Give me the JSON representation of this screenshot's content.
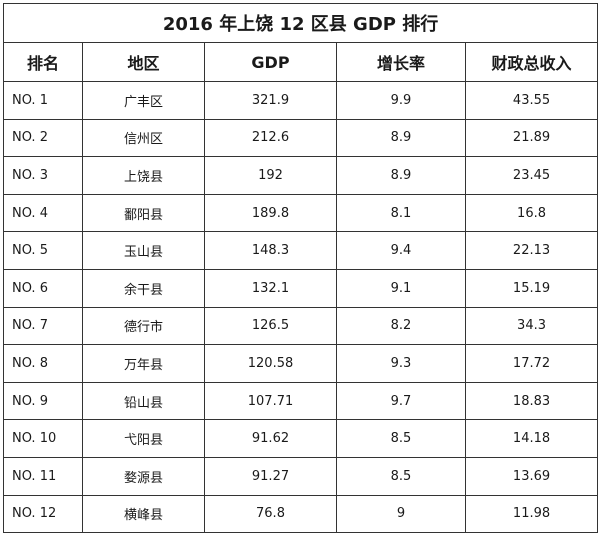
{
  "title": "2016 年上饶 12 区县 GDP 排行",
  "headers": [
    "排名",
    "地区",
    "GDP",
    "增长率",
    "财政总收入"
  ],
  "rows": [
    {
      "rank": "NO. 1",
      "region": "广丰区",
      "gdp": "321.9",
      "growth": "9.9",
      "revenue": "43.55"
    },
    {
      "rank": "NO. 2",
      "region": "信州区",
      "gdp": "212.6",
      "growth": "8.9",
      "revenue": "21.89"
    },
    {
      "rank": "NO. 3",
      "region": "上饶县",
      "gdp": "192",
      "growth": "8.9",
      "revenue": "23.45"
    },
    {
      "rank": "NO. 4",
      "region": "鄱阳县",
      "gdp": "189.8",
      "growth": "8.1",
      "revenue": "16.8"
    },
    {
      "rank": "NO. 5",
      "region": "玉山县",
      "gdp": "148.3",
      "growth": "9.4",
      "revenue": "22.13"
    },
    {
      "rank": "NO. 6",
      "region": "余干县",
      "gdp": "132.1",
      "growth": "9.1",
      "revenue": "15.19"
    },
    {
      "rank": "NO. 7",
      "region": "德行市",
      "gdp": "126.5",
      "growth": "8.2",
      "revenue": "34.3"
    },
    {
      "rank": "NO. 8",
      "region": "万年县",
      "gdp": "120.58",
      "growth": "9.3",
      "revenue": "17.72"
    },
    {
      "rank": "NO. 9",
      "region": "铅山县",
      "gdp": "107.71",
      "growth": "9.7",
      "revenue": "18.83"
    },
    {
      "rank": "NO. 10",
      "region": "弋阳县",
      "gdp": "91.62",
      "growth": "8.5",
      "revenue": "14.18"
    },
    {
      "rank": "NO. 11",
      "region": "婺源县",
      "gdp": "91.27",
      "growth": "8.5",
      "revenue": "13.69"
    },
    {
      "rank": "NO. 12",
      "region": "横峰县",
      "gdp": "76.8",
      "growth": "9",
      "revenue": "11.98"
    }
  ]
}
